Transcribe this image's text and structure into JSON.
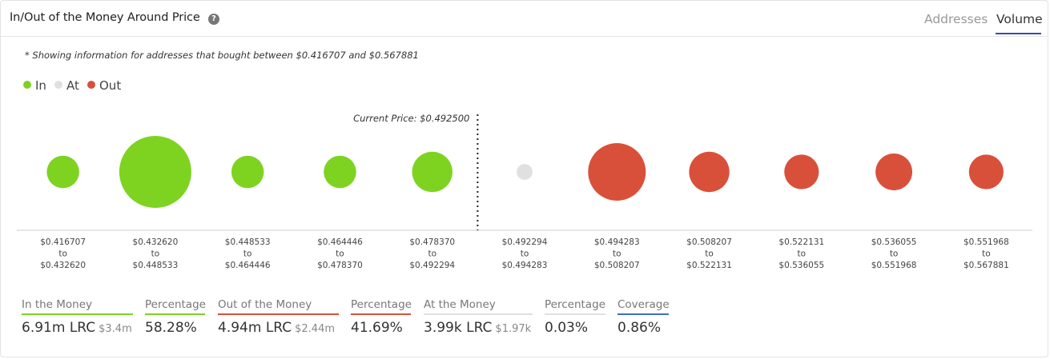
{
  "header": {
    "title": "In/Out of the Money Around Price",
    "help_icon": "help-circle-icon",
    "tabs": [
      {
        "label": "Addresses",
        "active": false
      },
      {
        "label": "Volume",
        "active": true
      }
    ]
  },
  "note": "* Showing information for addresses that bought between $0.416707 and $0.567881",
  "legend": [
    {
      "label": "In",
      "color": "#7ed321"
    },
    {
      "label": "At",
      "color": "#e0e0e0"
    },
    {
      "label": "Out",
      "color": "#d9503a"
    }
  ],
  "chart_data": {
    "type": "scatter",
    "current_price_label": "Current Price: $0.492500",
    "current_price_after_index": 4,
    "categories": [
      {
        "from": "$0.416707",
        "to_word": "to",
        "until": "$0.432620"
      },
      {
        "from": "$0.432620",
        "to_word": "to",
        "until": "$0.448533"
      },
      {
        "from": "$0.448533",
        "to_word": "to",
        "until": "$0.464446"
      },
      {
        "from": "$0.464446",
        "to_word": "to",
        "until": "$0.478370"
      },
      {
        "from": "$0.478370",
        "to_word": "to",
        "until": "$0.492294"
      },
      {
        "from": "$0.492294",
        "to_word": "to",
        "until": "$0.494283"
      },
      {
        "from": "$0.494283",
        "to_word": "to",
        "until": "$0.508207"
      },
      {
        "from": "$0.508207",
        "to_word": "to",
        "until": "$0.522131"
      },
      {
        "from": "$0.522131",
        "to_word": "to",
        "until": "$0.536055"
      },
      {
        "from": "$0.536055",
        "to_word": "to",
        "until": "$0.551968"
      },
      {
        "from": "$0.551968",
        "to_word": "to",
        "until": "$0.567881"
      }
    ],
    "series": [
      {
        "status": "in",
        "color": "#7ed321",
        "points": [
          0,
          1,
          2,
          3,
          4
        ],
        "relative_size": [
          0.45,
          1.0,
          0.45,
          0.45,
          0.56
        ]
      },
      {
        "status": "at",
        "color": "#e0e0e0",
        "points": [
          5
        ],
        "relative_size": [
          0.22
        ]
      },
      {
        "status": "out",
        "color": "#d9503a",
        "points": [
          6,
          7,
          8,
          9,
          10
        ],
        "relative_size": [
          0.8,
          0.56,
          0.48,
          0.51,
          0.48
        ]
      }
    ]
  },
  "stats": [
    {
      "label": "In the Money",
      "value": "6.91m LRC",
      "sub": "$3.4m",
      "bar": "#7ed321"
    },
    {
      "label": "Percentage",
      "value": "58.28%",
      "sub": "",
      "bar": "#7ed321"
    },
    {
      "label": "Out of the Money",
      "value": "4.94m LRC",
      "sub": "$2.44m",
      "bar": "#d9503a"
    },
    {
      "label": "Percentage",
      "value": "41.69%",
      "sub": "",
      "bar": "#d9503a"
    },
    {
      "label": "At the Money",
      "value": "3.99k LRC",
      "sub": "$1.97k",
      "bar": "#e0e0e0"
    },
    {
      "label": "Percentage",
      "value": "0.03%",
      "sub": "",
      "bar": "#e0e0e0"
    },
    {
      "label": "Coverage",
      "value": "0.86%",
      "sub": "",
      "bar": "#3a6fc4"
    }
  ]
}
